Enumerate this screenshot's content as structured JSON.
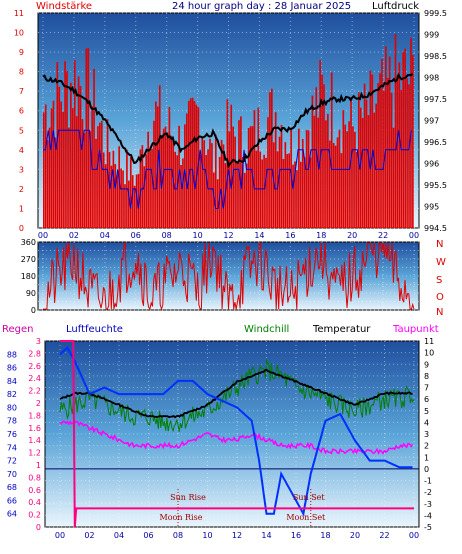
{
  "header": {
    "left": "Windstärke",
    "title": "24 hour graph day : 28 Januar 2025",
    "right": "Luftdruck"
  },
  "panel2": {
    "compass": [
      "N",
      "W",
      "S",
      "O",
      "N"
    ]
  },
  "panel3": {
    "labels": {
      "rain": "Regen",
      "humidity": "Luftfeuchte",
      "windchill": "Windchill",
      "temperature": "Temperatur",
      "dewpoint": "Taupunkt"
    },
    "annotations": {
      "sunrise": "Sun Rise",
      "sunset": "Sun Set",
      "moonrise": "Moon Rise",
      "moonset": "Moon Set"
    }
  },
  "colors": {
    "wind": "#e00000",
    "windDir": "#e00000",
    "beaufort": "#0000d0",
    "pressure": "#000000",
    "humidity": "#0030ff",
    "windchill": "#008000",
    "temperature": "#000000",
    "dewpoint": "#ff00ff",
    "rain": "#ff0080",
    "headerText": "#000080"
  },
  "chart_data": [
    {
      "type": "bar",
      "name": "wind-and-pressure",
      "x_ticks": [
        "00",
        "02",
        "04",
        "06",
        "08",
        "10",
        "12",
        "14",
        "16",
        "18",
        "20",
        "22",
        "00"
      ],
      "left_axis": {
        "label": "Windstärke",
        "range": [
          0,
          11
        ],
        "ticks": [
          0,
          1,
          2,
          3,
          4,
          5,
          6,
          7,
          8,
          9,
          10,
          11
        ]
      },
      "right_axis": {
        "label": "Luftdruck",
        "range": [
          994.5,
          999.5
        ],
        "ticks": [
          994.5,
          995,
          995.5,
          996,
          996.5,
          997,
          997.5,
          998,
          998.5,
          999,
          999.5
        ]
      },
      "series": [
        {
          "name": "Windstärke",
          "axis": "left",
          "hours": [
            0,
            1,
            2,
            3,
            4,
            5,
            6,
            7,
            8,
            9,
            10,
            11,
            12,
            13,
            14,
            15,
            16,
            17,
            18,
            19,
            20,
            21,
            22,
            23,
            24
          ],
          "values": [
            7,
            8,
            9,
            8,
            5,
            4,
            3,
            7,
            6,
            5,
            7,
            4,
            6,
            5,
            6,
            7,
            5,
            6,
            8,
            7,
            6,
            7,
            8,
            9,
            9
          ]
        },
        {
          "name": "Beaufort",
          "axis": "left",
          "hours": [
            0,
            1,
            2,
            3,
            4,
            5,
            6,
            7,
            8,
            9,
            10,
            11,
            12,
            13,
            14,
            15,
            16,
            17,
            18,
            19,
            20,
            21,
            22,
            23,
            24
          ],
          "values": [
            4,
            5,
            5,
            4,
            3,
            2,
            2,
            3,
            3,
            2,
            3,
            2,
            2,
            3,
            2,
            3,
            3,
            3,
            4,
            3,
            3,
            4,
            4,
            5,
            5
          ]
        },
        {
          "name": "Luftdruck",
          "axis": "right",
          "hours": [
            0,
            1,
            2,
            3,
            4,
            5,
            6,
            7,
            8,
            9,
            10,
            11,
            12,
            13,
            14,
            15,
            16,
            17,
            18,
            19,
            20,
            21,
            22,
            23,
            24
          ],
          "values": [
            998.0,
            997.9,
            997.7,
            997.4,
            997.0,
            996.5,
            996.0,
            996.4,
            996.7,
            996.3,
            996.6,
            996.7,
            996.0,
            996.1,
            996.5,
            996.8,
            996.8,
            997.2,
            997.4,
            997.5,
            997.5,
            997.6,
            997.8,
            998.0,
            998.1
          ]
        }
      ]
    },
    {
      "type": "line",
      "name": "wind-direction",
      "x_ticks": [
        "00",
        "02",
        "04",
        "06",
        "08",
        "10",
        "12",
        "14",
        "16",
        "18",
        "20",
        "22",
        "00"
      ],
      "y_axis": {
        "range": [
          0,
          360
        ],
        "ticks": [
          0,
          45,
          90,
          135,
          180,
          225,
          270,
          315,
          360
        ]
      },
      "series": [
        {
          "name": "Windrichtung",
          "hours": [
            0,
            1,
            2,
            3,
            4,
            5,
            6,
            7,
            8,
            9,
            10,
            11,
            12,
            13,
            14,
            15,
            16,
            17,
            18,
            19,
            20,
            21,
            22,
            23,
            24
          ],
          "values": [
            45,
            180,
            270,
            90,
            30,
            200,
            300,
            60,
            150,
            240,
            100,
            330,
            20,
            180,
            280,
            120,
            60,
            210,
            310,
            90,
            170,
            270,
            350,
            150,
            60
          ]
        }
      ]
    },
    {
      "type": "line",
      "name": "temperature-humidity",
      "x_ticks": [
        "00",
        "02",
        "04",
        "06",
        "08",
        "10",
        "12",
        "14",
        "16",
        "18",
        "20",
        "22",
        "00"
      ],
      "rain_axis": {
        "label": "Regen",
        "range": [
          0,
          3
        ],
        "ticks": [
          0,
          0.2,
          0.4,
          0.6,
          0.8,
          1,
          1.2,
          1.4,
          1.6,
          1.8,
          2,
          2.2,
          2.4,
          2.6,
          2.8,
          3
        ]
      },
      "humidity_axis": {
        "label": "Luftfeuchte",
        "range": [
          62,
          90
        ],
        "ticks": [
          64,
          66,
          68,
          70,
          72,
          74,
          76,
          78,
          80,
          82,
          84,
          86,
          88
        ]
      },
      "temperature_axis": {
        "label": "Temperatur",
        "range": [
          -5,
          11
        ],
        "ticks": [
          -5,
          -4,
          -3,
          -2,
          -1,
          0,
          1,
          2,
          3,
          4,
          5,
          6,
          7,
          8,
          9,
          10,
          11
        ]
      },
      "series": [
        {
          "name": "Luftfeuchte",
          "axis": "humidity",
          "hours": [
            0,
            0.5,
            1,
            2,
            3,
            4,
            5,
            6,
            7,
            8,
            9,
            10,
            11,
            12,
            13,
            13.5,
            14,
            14.5,
            15,
            16,
            16.5,
            17,
            18,
            19,
            20,
            21,
            22,
            23,
            24
          ],
          "values": [
            88,
            89,
            87,
            82,
            83,
            82,
            82,
            82,
            82,
            84,
            84,
            82,
            81,
            80,
            78,
            72,
            64,
            64,
            70,
            66,
            64,
            70,
            78,
            79,
            75,
            72,
            72,
            71,
            71
          ]
        },
        {
          "name": "Windchill",
          "axis": "temperature",
          "hours": [
            0,
            1,
            2,
            3,
            4,
            5,
            6,
            7,
            8,
            9,
            10,
            11,
            12,
            13,
            14,
            15,
            16,
            17,
            18,
            19,
            20,
            21,
            22,
            23,
            24
          ],
          "values": [
            5,
            5.5,
            6,
            5.5,
            5,
            4.5,
            4.5,
            4,
            4,
            4.5,
            5,
            6,
            7,
            8,
            8.5,
            8,
            7,
            6.5,
            6,
            5.5,
            5,
            5.5,
            6,
            6,
            6.5
          ]
        },
        {
          "name": "Temperatur",
          "axis": "temperature",
          "hours": [
            0,
            1,
            2,
            3,
            4,
            5,
            6,
            7,
            8,
            9,
            10,
            11,
            12,
            13,
            14,
            15,
            16,
            17,
            18,
            19,
            20,
            21,
            22,
            23,
            24
          ],
          "values": [
            6,
            6.5,
            6.5,
            6,
            5.5,
            5,
            4.5,
            4.5,
            4.5,
            5,
            5.5,
            6.5,
            7.5,
            8,
            8.5,
            8,
            7.5,
            7,
            6.5,
            6,
            5.5,
            6,
            6.5,
            6.5,
            6.5
          ]
        },
        {
          "name": "Taupunkt",
          "axis": "temperature",
          "hours": [
            0,
            1,
            2,
            3,
            4,
            5,
            6,
            7,
            8,
            9,
            10,
            11,
            12,
            13,
            14,
            15,
            16,
            17,
            18,
            19,
            20,
            21,
            22,
            23,
            24
          ],
          "values": [
            4,
            4,
            3.5,
            3,
            2.5,
            2,
            2,
            2,
            2,
            2.5,
            3,
            2.5,
            2.5,
            3,
            2.5,
            2,
            2,
            2,
            1.5,
            1.5,
            1.5,
            1.5,
            1.5,
            2,
            2
          ]
        },
        {
          "name": "Regen",
          "axis": "rain",
          "hours": [
            0,
            0.9,
            1,
            1.1,
            24
          ],
          "values": [
            3,
            3,
            0,
            0.3,
            0.3
          ]
        }
      ],
      "reference_lines": [
        {
          "name": "freezing",
          "axis": "temperature",
          "value": 0
        }
      ],
      "events": [
        {
          "label": "Sun Rise",
          "hour": 8.0
        },
        {
          "label": "Sun Set",
          "hour": 17.0
        },
        {
          "label": "Moon Rise",
          "hour": 8.0
        },
        {
          "label": "Moon Set",
          "hour": 16.8
        }
      ]
    }
  ]
}
